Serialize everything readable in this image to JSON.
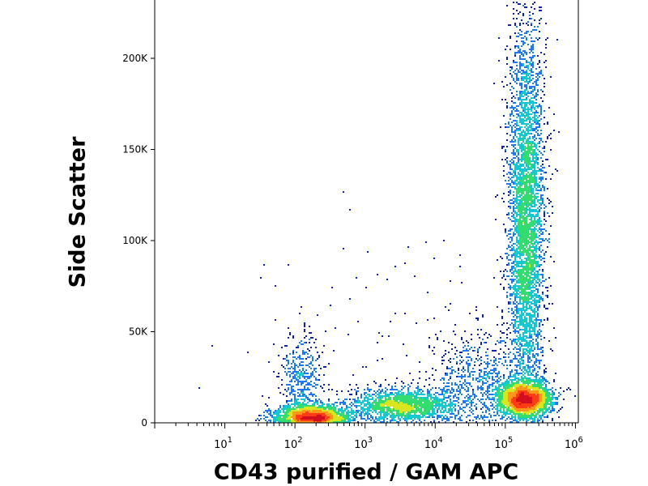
{
  "chart_data": {
    "type": "scatter",
    "style": "density dot plot (flow cytometry)",
    "xlabel": "CD43 purified / GAM APC",
    "ylabel": "Side Scatter",
    "x_scale": "log",
    "xlim": [
      1,
      1100000
    ],
    "ylim": [
      0,
      232000
    ],
    "x_ticks": [
      {
        "value": 10,
        "base": "10",
        "exp": "1"
      },
      {
        "value": 100,
        "base": "10",
        "exp": "2"
      },
      {
        "value": 1000,
        "base": "10",
        "exp": "3"
      },
      {
        "value": 10000,
        "base": "10",
        "exp": "4"
      },
      {
        "value": 100000,
        "base": "10",
        "exp": "5"
      },
      {
        "value": 1000000,
        "base": "10",
        "exp": "6"
      }
    ],
    "y_ticks": [
      {
        "value": 0,
        "label": "0"
      },
      {
        "value": 50000,
        "label": "50K"
      },
      {
        "value": 100000,
        "label": "100K"
      },
      {
        "value": 150000,
        "label": "150K"
      },
      {
        "value": 200000,
        "label": "200K"
      }
    ],
    "grid": false,
    "legend": "none",
    "density_colors": [
      "#0f1eb4",
      "#1e78ff",
      "#14c8d2",
      "#32dc6e",
      "#d7e61e",
      "#ff9619",
      "#ff3c14",
      "#d20f1e"
    ],
    "populations": [
      {
        "log10_x": 2.25,
        "log10_sd_x": 0.26,
        "y": 3000,
        "y_sd": 3500,
        "weight": 1.0
      },
      {
        "log10_x": 2.1,
        "log10_sd_x": 0.15,
        "y": 22000,
        "y_sd": 14000,
        "weight": 0.22
      },
      {
        "log10_x": 3.55,
        "log10_sd_x": 0.38,
        "y": 9500,
        "y_sd": 4500,
        "weight": 0.8
      },
      {
        "log10_x": 5.28,
        "log10_sd_x": 0.2,
        "y": 13000,
        "y_sd": 5000,
        "weight": 1.15
      },
      {
        "log10_x": 5.3,
        "log10_sd_x": 0.13,
        "y": 110000,
        "y_sd": 55000,
        "weight": 2.2
      },
      {
        "log10_x": 4.6,
        "log10_sd_x": 0.35,
        "y": 22000,
        "y_sd": 14000,
        "weight": 0.35
      },
      {
        "log10_x": 3.5,
        "log10_sd_x": 1.2,
        "y": 40000,
        "y_sd": 45000,
        "weight": 0.06
      }
    ]
  }
}
